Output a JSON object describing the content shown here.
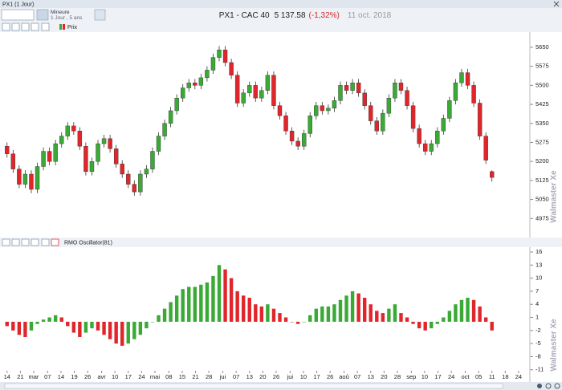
{
  "window_title": "PX1 (1 Jour)",
  "toolbar": {
    "mode": "Mineure",
    "period": "1 Jour , 5 ans",
    "symbol": "PX1 - CAC 40",
    "last": "5 137.58",
    "change": "(-1,32%)",
    "date": "11 oct. 2018"
  },
  "watermark": "Walmaster Xe",
  "chart_data": [
    {
      "type": "candlestick",
      "name": "Prix",
      "up_color": "#3aa935",
      "down_color": "#e0262b",
      "open": [
        5260,
        5230,
        5170,
        5110,
        5150,
        5090,
        5180,
        5240,
        5200,
        5270,
        5300,
        5340,
        5320,
        5260,
        5160,
        5200,
        5270,
        5290,
        5250,
        5190,
        5150,
        5110,
        5080,
        5150,
        5170,
        5240,
        5300,
        5350,
        5400,
        5450,
        5490,
        5510,
        5500,
        5530,
        5560,
        5610,
        5640,
        5590,
        5540,
        5430,
        5470,
        5500,
        5450,
        5480,
        5540,
        5420,
        5380,
        5320,
        5280,
        5260,
        5310,
        5380,
        5420,
        5400,
        5410,
        5440,
        5500,
        5480,
        5510,
        5470,
        5420,
        5360,
        5320,
        5390,
        5450,
        5510,
        5480,
        5420,
        5330,
        5270,
        5240,
        5270,
        5320,
        5370,
        5440,
        5510,
        5550,
        5500,
        5430,
        5300,
        5160
      ],
      "high": [
        5275,
        5245,
        5185,
        5165,
        5165,
        5195,
        5255,
        5255,
        5285,
        5315,
        5355,
        5355,
        5335,
        5275,
        5215,
        5285,
        5305,
        5305,
        5265,
        5205,
        5165,
        5125,
        5165,
        5185,
        5255,
        5315,
        5365,
        5415,
        5465,
        5505,
        5525,
        5525,
        5545,
        5575,
        5625,
        5655,
        5655,
        5605,
        5555,
        5485,
        5515,
        5515,
        5495,
        5555,
        5555,
        5435,
        5395,
        5335,
        5295,
        5325,
        5395,
        5435,
        5435,
        5425,
        5455,
        5515,
        5515,
        5525,
        5525,
        5485,
        5435,
        5375,
        5405,
        5465,
        5525,
        5525,
        5495,
        5435,
        5345,
        5285,
        5285,
        5335,
        5385,
        5455,
        5525,
        5565,
        5565,
        5515,
        5445,
        5315,
        5165
      ],
      "low": [
        5215,
        5155,
        5095,
        5095,
        5075,
        5075,
        5165,
        5185,
        5185,
        5255,
        5285,
        5305,
        5245,
        5145,
        5145,
        5185,
        5255,
        5235,
        5175,
        5135,
        5095,
        5065,
        5065,
        5135,
        5155,
        5225,
        5285,
        5335,
        5385,
        5435,
        5475,
        5485,
        5485,
        5515,
        5545,
        5595,
        5575,
        5525,
        5415,
        5415,
        5455,
        5435,
        5435,
        5465,
        5405,
        5365,
        5305,
        5265,
        5245,
        5245,
        5295,
        5365,
        5385,
        5385,
        5395,
        5425,
        5465,
        5465,
        5455,
        5405,
        5345,
        5305,
        5305,
        5375,
        5435,
        5465,
        5405,
        5315,
        5255,
        5225,
        5225,
        5255,
        5305,
        5355,
        5425,
        5495,
        5485,
        5415,
        5285,
        5190,
        5120
      ],
      "close": [
        5230,
        5170,
        5110,
        5150,
        5090,
        5180,
        5240,
        5200,
        5270,
        5300,
        5340,
        5320,
        5260,
        5160,
        5200,
        5270,
        5290,
        5250,
        5190,
        5150,
        5110,
        5080,
        5150,
        5170,
        5240,
        5300,
        5350,
        5400,
        5450,
        5490,
        5510,
        5500,
        5530,
        5560,
        5610,
        5640,
        5590,
        5540,
        5430,
        5470,
        5500,
        5450,
        5480,
        5540,
        5420,
        5380,
        5320,
        5280,
        5260,
        5310,
        5380,
        5420,
        5400,
        5410,
        5440,
        5500,
        5480,
        5510,
        5470,
        5420,
        5360,
        5320,
        5390,
        5450,
        5510,
        5480,
        5420,
        5330,
        5270,
        5240,
        5270,
        5320,
        5370,
        5440,
        5510,
        5550,
        5500,
        5430,
        5300,
        5205,
        5137
      ],
      "ylim": [
        4900,
        5710
      ],
      "yticks": [
        4975,
        5050,
        5125,
        5200,
        5275,
        5350,
        5425,
        5500,
        5575,
        5650
      ],
      "xlim": [
        -0.5,
        85.6
      ]
    },
    {
      "type": "bar",
      "name": "RMO Oscillator(81)",
      "up_color": "#3aa935",
      "down_color": "#e0262b",
      "values": [
        -1,
        -2,
        -3,
        -3.5,
        -2,
        -0.5,
        0.5,
        1,
        1.5,
        1,
        -1,
        -2.5,
        -3.5,
        -2.5,
        -1.5,
        -2,
        -3,
        -4,
        -5,
        -5.5,
        -5,
        -4,
        -3,
        -1.5,
        0,
        1.5,
        3,
        4.5,
        6,
        7.5,
        8,
        8,
        8.5,
        9,
        10.5,
        13,
        12,
        10,
        7,
        6,
        5.5,
        4,
        3.5,
        4,
        3,
        2,
        1,
        0,
        -0.5,
        0,
        1.5,
        3,
        3.5,
        3.5,
        4,
        5,
        6,
        7,
        6.5,
        5.5,
        4,
        2.5,
        2,
        3,
        4,
        2,
        1,
        -0.5,
        -1.5,
        -2,
        -1.5,
        -0.5,
        1,
        2.5,
        4,
        5,
        5.5,
        5,
        3.5,
        1,
        -2
      ],
      "ylim": [
        -12.7,
        17.1
      ],
      "yticks": [
        16,
        13,
        10,
        7,
        4,
        1,
        -2,
        -5,
        -8,
        -11
      ],
      "xlim": [
        -0.5,
        85.6
      ],
      "xticks": [
        {
          "value": 0,
          "label": "14"
        },
        {
          "value": 2.2,
          "label": "21"
        },
        {
          "value": 4.4,
          "label": "mar"
        },
        {
          "value": 6.7,
          "label": "07"
        },
        {
          "value": 8.9,
          "label": "14"
        },
        {
          "value": 11.1,
          "label": "19"
        },
        {
          "value": 13.3,
          "label": "26"
        },
        {
          "value": 15.6,
          "label": "avr"
        },
        {
          "value": 17.8,
          "label": "10"
        },
        {
          "value": 20,
          "label": "17"
        },
        {
          "value": 22.2,
          "label": "24"
        },
        {
          "value": 24.4,
          "label": "mai"
        },
        {
          "value": 26.7,
          "label": "08"
        },
        {
          "value": 28.9,
          "label": "15"
        },
        {
          "value": 31.1,
          "label": "21"
        },
        {
          "value": 33.3,
          "label": "28"
        },
        {
          "value": 35.6,
          "label": "jui"
        },
        {
          "value": 37.8,
          "label": "07"
        },
        {
          "value": 40,
          "label": "13"
        },
        {
          "value": 42.2,
          "label": "20"
        },
        {
          "value": 44.4,
          "label": "26"
        },
        {
          "value": 46.7,
          "label": "jui"
        },
        {
          "value": 48.9,
          "label": "10"
        },
        {
          "value": 51.1,
          "label": "17"
        },
        {
          "value": 53.3,
          "label": "26"
        },
        {
          "value": 55.6,
          "label": "aoû"
        },
        {
          "value": 57.8,
          "label": "07"
        },
        {
          "value": 60,
          "label": "13"
        },
        {
          "value": 62.2,
          "label": "20"
        },
        {
          "value": 64.4,
          "label": "28"
        },
        {
          "value": 66.7,
          "label": "sep"
        },
        {
          "value": 68.9,
          "label": "10"
        },
        {
          "value": 71.1,
          "label": "17"
        },
        {
          "value": 73.3,
          "label": "24"
        },
        {
          "value": 75.6,
          "label": "oct"
        },
        {
          "value": 77.8,
          "label": "05"
        },
        {
          "value": 80,
          "label": "11"
        },
        {
          "value": 82.2,
          "label": "18"
        },
        {
          "value": 84.4,
          "label": "24"
        }
      ]
    }
  ]
}
